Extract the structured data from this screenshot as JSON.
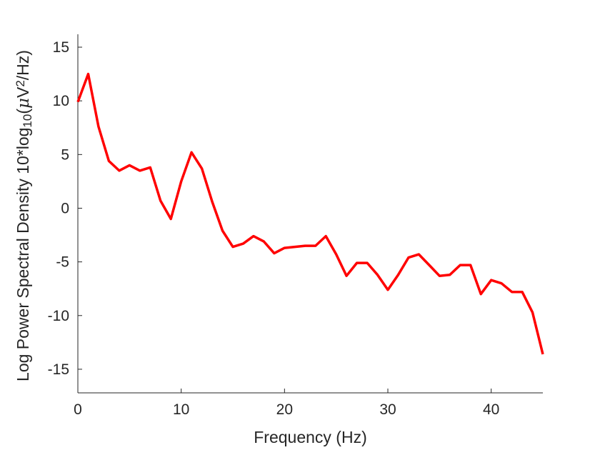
{
  "chart_data": {
    "type": "line",
    "title": "",
    "xlabel": "Frequency (Hz)",
    "ylabel": {
      "prefix": "Log Power Spectral Density 10*log",
      "subscript": "10",
      "open": "(",
      "mu": "μ",
      "unit": "V",
      "superscript": "2",
      "suffix": "/Hz)"
    },
    "xlim": [
      0,
      45
    ],
    "ylim": [
      -17.2,
      16.2
    ],
    "xticks": [
      0,
      10,
      20,
      30,
      40
    ],
    "xtick_labels": [
      "0",
      "10",
      "20",
      "30",
      "40"
    ],
    "yticks": [
      15,
      10,
      5,
      0,
      -5,
      -10,
      -15
    ],
    "ytick_labels": [
      "15",
      "10",
      "5",
      "0",
      "-5",
      "-10",
      "-15"
    ],
    "grid": false,
    "line_color": "#ff0000",
    "series": [
      {
        "x": [
          0,
          1,
          2,
          3,
          4,
          5,
          6,
          7,
          8,
          9,
          10,
          11,
          12,
          13,
          14,
          15,
          16,
          17,
          18,
          19,
          20,
          21,
          22,
          23,
          24,
          25,
          26,
          27,
          28,
          29,
          30,
          31,
          32,
          33,
          34,
          35,
          36,
          37,
          38,
          39,
          40,
          41,
          42,
          43,
          44,
          45
        ],
        "values": [
          9.9,
          12.5,
          7.6,
          4.4,
          3.5,
          4.0,
          3.5,
          3.8,
          0.7,
          -1.0,
          2.5,
          5.2,
          3.7,
          0.6,
          -2.1,
          -3.6,
          -3.3,
          -2.6,
          -3.1,
          -4.2,
          -3.7,
          -3.6,
          -3.5,
          -3.5,
          -2.6,
          -4.3,
          -6.3,
          -5.1,
          -5.1,
          -6.2,
          -7.6,
          -6.2,
          -4.6,
          -4.3,
          -5.3,
          -6.3,
          -6.2,
          -5.3,
          -5.3,
          -8.0,
          -6.7,
          -7.0,
          -7.8,
          -7.8,
          -9.7,
          -13.6
        ]
      }
    ]
  }
}
